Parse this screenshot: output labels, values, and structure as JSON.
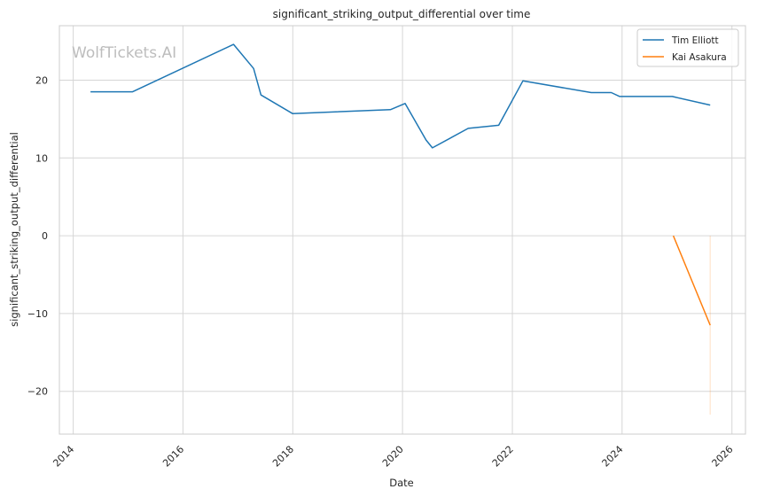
{
  "chart_data": {
    "type": "line",
    "title": "significant_striking_output_differential over time",
    "xlabel": "Date",
    "ylabel": "significant_striking_output_differential",
    "watermark": "WolfTickets.AI",
    "xlim": [
      "2013-10-01",
      "2026-04-01"
    ],
    "ylim": [
      -25.5,
      27
    ],
    "x_ticks": [
      {
        "date": "2014-01-01",
        "label": "2014"
      },
      {
        "date": "2016-01-01",
        "label": "2016"
      },
      {
        "date": "2018-01-01",
        "label": "2018"
      },
      {
        "date": "2020-01-01",
        "label": "2020"
      },
      {
        "date": "2022-01-01",
        "label": "2022"
      },
      {
        "date": "2024-01-01",
        "label": "2024"
      },
      {
        "date": "2026-01-01",
        "label": "2026"
      }
    ],
    "y_ticks": [
      {
        "value": 20,
        "label": "20"
      },
      {
        "value": 10,
        "label": "10"
      },
      {
        "value": 0,
        "label": "0"
      },
      {
        "value": -10,
        "label": "−10"
      },
      {
        "value": -20,
        "label": "−20"
      }
    ],
    "grid": true,
    "legend_position": "top-right",
    "series": [
      {
        "name": "Tim Elliott",
        "color": "#1f77b4",
        "points": [
          {
            "x": "2014-04-26",
            "y": 18.5
          },
          {
            "x": "2015-01-31",
            "y": 18.5
          },
          {
            "x": "2016-12-03",
            "y": 24.6
          },
          {
            "x": "2017-04-15",
            "y": 21.5
          },
          {
            "x": "2017-06-03",
            "y": 18.1
          },
          {
            "x": "2017-12-30",
            "y": 15.7
          },
          {
            "x": "2019-10-12",
            "y": 16.2
          },
          {
            "x": "2020-01-18",
            "y": 17.0
          },
          {
            "x": "2020-06-06",
            "y": 12.3
          },
          {
            "x": "2020-07-18",
            "y": 11.3
          },
          {
            "x": "2021-03-13",
            "y": 13.8
          },
          {
            "x": "2021-10-02",
            "y": 14.2
          },
          {
            "x": "2022-03-12",
            "y": 19.9
          },
          {
            "x": "2023-06-10",
            "y": 18.4
          },
          {
            "x": "2023-10-21",
            "y": 18.4
          },
          {
            "x": "2023-12-16",
            "y": 17.9
          },
          {
            "x": "2024-11-30",
            "y": 17.9
          },
          {
            "x": "2025-08-09",
            "y": 16.8
          }
        ]
      },
      {
        "name": "Kai Asakura",
        "color": "#ff7f0e",
        "points": [
          {
            "x": "2024-12-07",
            "y": 0.0
          },
          {
            "x": "2025-08-09",
            "y": -11.5
          }
        ],
        "error_band": {
          "x": "2025-08-09",
          "low": -23.0,
          "high": 0.0
        }
      }
    ]
  }
}
